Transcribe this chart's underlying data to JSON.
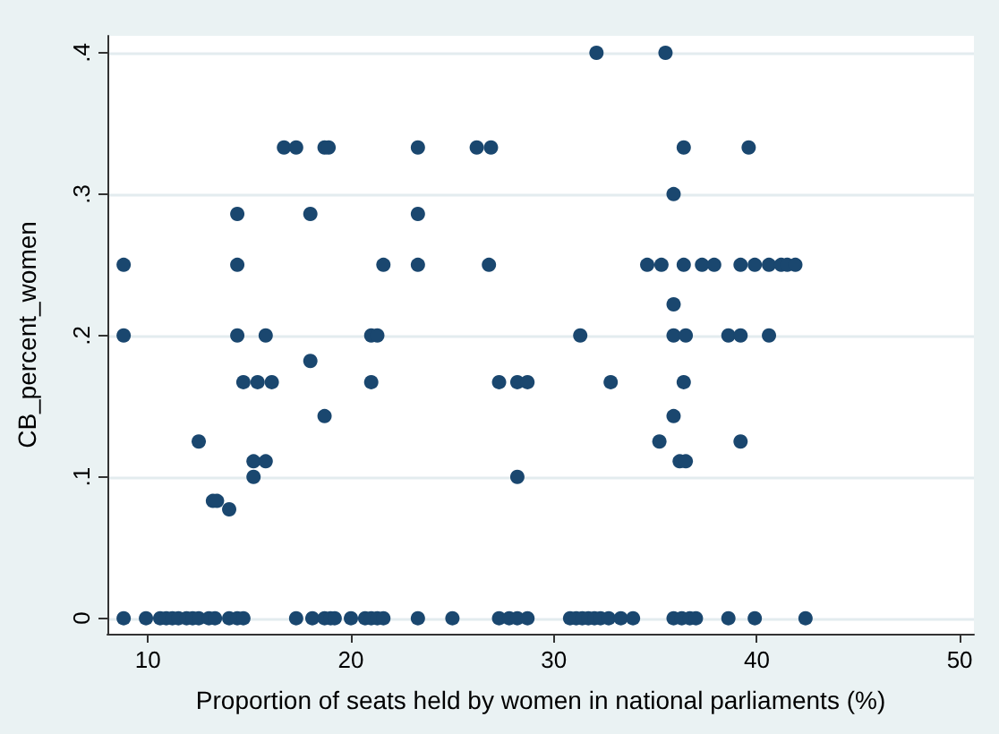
{
  "chart_data": {
    "type": "scatter",
    "xlabel": "Proportion of seats held by women in national parliaments (%)",
    "ylabel": "CB_percent_women",
    "xlim": [
      8,
      50.7
    ],
    "ylim": [
      -0.011,
      0.412
    ],
    "xticks": [
      10,
      20,
      30,
      40,
      50
    ],
    "yticks": [
      {
        "value": 0,
        "label": "0"
      },
      {
        "value": 0.1,
        "label": ".1"
      },
      {
        "value": 0.2,
        "label": ".2"
      },
      {
        "value": 0.3,
        "label": ".3"
      },
      {
        "value": 0.4,
        "label": ".4"
      }
    ],
    "grid": "y",
    "marker": "circle",
    "series": [
      {
        "color": "#1a476f",
        "x": [
          32.1,
          35.5,
          16.7,
          17.3,
          18.7,
          18.9,
          23.3,
          26.2,
          26.9,
          36.4,
          39.6,
          35.9,
          14.4,
          18.0,
          23.3,
          8.8,
          14.4,
          21.6,
          23.3,
          26.8,
          34.6,
          35.3,
          36.4,
          37.3,
          37.9,
          39.2,
          39.9,
          40.6,
          41.2,
          41.5,
          41.9,
          35.9,
          8.8,
          14.4,
          15.8,
          21.0,
          21.3,
          31.3,
          35.9,
          36.5,
          38.6,
          39.2,
          40.6,
          18.0,
          14.7,
          15.4,
          16.1,
          21.0,
          27.3,
          28.2,
          28.7,
          32.8,
          36.4,
          18.7,
          35.9,
          12.5,
          35.2,
          39.2,
          15.2,
          15.8,
          36.2,
          36.5,
          15.2,
          28.2,
          13.2,
          13.4,
          14.0,
          8.8,
          9.9,
          10.6,
          10.9,
          11.2,
          11.5,
          11.9,
          12.2,
          12.5,
          13.0,
          13.3,
          14.0,
          14.4,
          14.7,
          17.3,
          18.1,
          18.7,
          19.0,
          19.2,
          20.0,
          20.7,
          21.0,
          21.3,
          21.6,
          23.3,
          25.0,
          27.3,
          27.8,
          28.2,
          28.7,
          30.8,
          31.1,
          31.4,
          31.7,
          32.0,
          32.3,
          32.7,
          33.3,
          33.9,
          35.9,
          36.3,
          36.7,
          37.0,
          38.6,
          39.9,
          42.4
        ],
        "values": [
          0.4,
          0.4,
          0.333,
          0.333,
          0.333,
          0.333,
          0.333,
          0.333,
          0.333,
          0.333,
          0.333,
          0.3,
          0.286,
          0.286,
          0.286,
          0.25,
          0.25,
          0.25,
          0.25,
          0.25,
          0.25,
          0.25,
          0.25,
          0.25,
          0.25,
          0.25,
          0.25,
          0.25,
          0.25,
          0.25,
          0.25,
          0.222,
          0.2,
          0.2,
          0.2,
          0.2,
          0.2,
          0.2,
          0.2,
          0.2,
          0.2,
          0.2,
          0.2,
          0.182,
          0.167,
          0.167,
          0.167,
          0.167,
          0.167,
          0.167,
          0.167,
          0.167,
          0.167,
          0.143,
          0.143,
          0.125,
          0.125,
          0.125,
          0.111,
          0.111,
          0.111,
          0.111,
          0.1,
          0.1,
          0.083,
          0.083,
          0.077,
          0,
          0,
          0,
          0,
          0,
          0,
          0,
          0,
          0,
          0,
          0,
          0,
          0,
          0,
          0,
          0,
          0,
          0,
          0,
          0,
          0,
          0,
          0,
          0,
          0,
          0,
          0,
          0,
          0,
          0,
          0,
          0,
          0,
          0,
          0,
          0,
          0,
          0,
          0,
          0,
          0,
          0,
          0,
          0,
          0,
          0
        ]
      }
    ]
  }
}
